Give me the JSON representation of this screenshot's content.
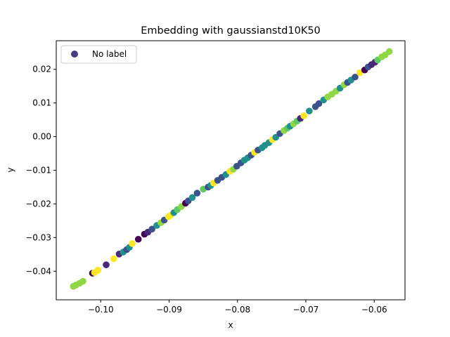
{
  "chart_data": {
    "type": "scatter",
    "title": "Embedding with gaussianstd10K50",
    "xlabel": "x",
    "ylabel": "y",
    "xlim": [
      -0.1065,
      -0.0555
    ],
    "ylim": [
      -0.0485,
      0.0285
    ],
    "x_ticks": [
      -0.1,
      -0.09,
      -0.08,
      -0.07,
      -0.06
    ],
    "y_ticks": [
      -0.04,
      -0.03,
      -0.02,
      -0.01,
      0.0,
      0.01,
      0.02
    ],
    "x_tick_labels": [
      "−0.10",
      "−0.09",
      "−0.08",
      "−0.07",
      "−0.06"
    ],
    "y_tick_labels": [
      "−0.04",
      "−0.03",
      "−0.02",
      "−0.01",
      "0.00",
      "0.01",
      "0.02"
    ],
    "legend": {
      "label": "No label",
      "placement": "upper-left",
      "marker_color": "#46407f"
    },
    "grid": false,
    "colors": {
      "c0": "#440154",
      "c1": "#3b528b",
      "c2": "#21908d",
      "c3": "#5dc963",
      "c4": "#8fd744",
      "c5": "#fde725",
      "c6": "#31688e",
      "c7": "#482878"
    },
    "series": [
      {
        "points": [
          [
            -0.104,
            -0.0445,
            "c4"
          ],
          [
            -0.1036,
            -0.0441,
            "c4"
          ],
          [
            -0.1031,
            -0.0436,
            "c4"
          ],
          [
            -0.1026,
            -0.043,
            "c4"
          ],
          [
            -0.1012,
            -0.0406,
            "c0"
          ],
          [
            -0.1009,
            -0.0404,
            "c5"
          ],
          [
            -0.1004,
            -0.0397,
            "c5"
          ],
          [
            -0.0992,
            -0.0381,
            "c7"
          ],
          [
            -0.0981,
            -0.0363,
            "c5"
          ],
          [
            -0.0973,
            -0.0349,
            "c7"
          ],
          [
            -0.0967,
            -0.0343,
            "c2"
          ],
          [
            -0.0962,
            -0.0336,
            "c1"
          ],
          [
            -0.0958,
            -0.0329,
            "c2"
          ],
          [
            -0.0954,
            -0.0318,
            "c5"
          ],
          [
            -0.0945,
            -0.0305,
            "c0"
          ],
          [
            -0.0936,
            -0.029,
            "c0"
          ],
          [
            -0.0931,
            -0.0284,
            "c7"
          ],
          [
            -0.0925,
            -0.0275,
            "c1"
          ],
          [
            -0.0918,
            -0.0264,
            "c2"
          ],
          [
            -0.0912,
            -0.0256,
            "c4"
          ],
          [
            -0.0907,
            -0.0248,
            "c1"
          ],
          [
            -0.0901,
            -0.0238,
            "c5"
          ],
          [
            -0.0898,
            -0.0234,
            "c5"
          ],
          [
            -0.0893,
            -0.0226,
            "c2"
          ],
          [
            -0.0888,
            -0.0217,
            "c3"
          ],
          [
            -0.0882,
            -0.0208,
            "c4"
          ],
          [
            -0.0876,
            -0.0198,
            "c0"
          ],
          [
            -0.0872,
            -0.0191,
            "c1"
          ],
          [
            -0.0866,
            -0.0181,
            "c2"
          ],
          [
            -0.0859,
            -0.0168,
            "c1"
          ],
          [
            -0.085,
            -0.0156,
            "c3"
          ],
          [
            -0.0843,
            -0.015,
            "c1"
          ],
          [
            -0.0839,
            -0.0145,
            "c2"
          ],
          [
            -0.0835,
            -0.0138,
            "c5"
          ],
          [
            -0.0829,
            -0.013,
            "c1"
          ],
          [
            -0.0823,
            -0.0121,
            "c1"
          ],
          [
            -0.0817,
            -0.0113,
            "c2"
          ],
          [
            -0.0811,
            -0.0103,
            "c5"
          ],
          [
            -0.0806,
            -0.0097,
            "c4"
          ],
          [
            -0.0801,
            -0.0088,
            "c1"
          ],
          [
            -0.0795,
            -0.0078,
            "c1"
          ],
          [
            -0.079,
            -0.007,
            "c2"
          ],
          [
            -0.0785,
            -0.0063,
            "c2"
          ],
          [
            -0.078,
            -0.0055,
            "c1"
          ],
          [
            -0.0775,
            -0.0047,
            "c5"
          ],
          [
            -0.077,
            -0.004,
            "c1"
          ],
          [
            -0.0764,
            -0.0033,
            "c2"
          ],
          [
            -0.076,
            -0.0026,
            "c2"
          ],
          [
            -0.0754,
            -0.0018,
            "c2"
          ],
          [
            -0.0749,
            -0.0009,
            "c5"
          ],
          [
            -0.0744,
            -0.0002,
            "c2"
          ],
          [
            -0.0738,
            0.0009,
            "c1"
          ],
          [
            -0.0732,
            0.0018,
            "c4"
          ],
          [
            -0.0727,
            0.0025,
            "c3"
          ],
          [
            -0.0723,
            0.0031,
            "c2"
          ],
          [
            -0.0718,
            0.0038,
            "c4"
          ],
          [
            -0.0713,
            0.0046,
            "c3"
          ],
          [
            -0.0708,
            0.0054,
            "c7"
          ],
          [
            -0.0703,
            0.0062,
            "c5"
          ],
          [
            -0.0695,
            0.0076,
            "c2"
          ],
          [
            -0.0686,
            0.0089,
            "c1"
          ],
          [
            -0.0681,
            0.0098,
            "c1"
          ],
          [
            -0.0674,
            0.0109,
            "c2"
          ],
          [
            -0.0668,
            0.0118,
            "c4"
          ],
          [
            -0.0662,
            0.0126,
            "c4"
          ],
          [
            -0.0656,
            0.0135,
            "c4"
          ],
          [
            -0.065,
            0.0144,
            "c2"
          ],
          [
            -0.0644,
            0.0154,
            "c4"
          ],
          [
            -0.0639,
            0.0161,
            "c1"
          ],
          [
            -0.0634,
            0.0168,
            "c2"
          ],
          [
            -0.0628,
            0.0177,
            "c1"
          ],
          [
            -0.0621,
            0.019,
            "c5"
          ],
          [
            -0.0614,
            0.0198,
            "c0"
          ],
          [
            -0.0609,
            0.0207,
            "c1"
          ],
          [
            -0.0604,
            0.0214,
            "c7"
          ],
          [
            -0.0599,
            0.0221,
            "c7"
          ],
          [
            -0.0595,
            0.0228,
            "c3"
          ],
          [
            -0.0589,
            0.0237,
            "c4"
          ],
          [
            -0.0584,
            0.0243,
            "c4"
          ],
          [
            -0.0578,
            0.0253,
            "c4"
          ]
        ]
      }
    ]
  }
}
